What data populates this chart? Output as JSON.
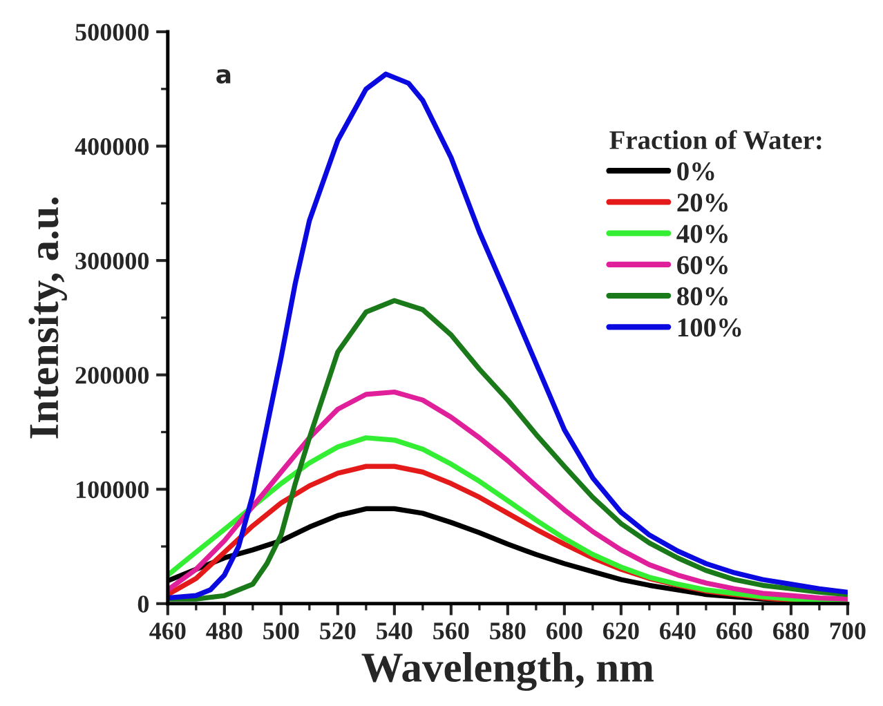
{
  "chart_data": {
    "type": "line",
    "xlabel": "Wavelength, nm",
    "ylabel": "Intensity, a.u.",
    "legend_title": "Fraction of Water:",
    "legend": "top right",
    "grid": false,
    "line_style": "solid",
    "marker": "none",
    "annotations": [
      "a"
    ],
    "xlim": [
      460,
      700
    ],
    "xticks": [
      460,
      480,
      500,
      520,
      540,
      560,
      580,
      600,
      620,
      640,
      660,
      680,
      700
    ],
    "ylim": [
      0,
      500000
    ],
    "yticks": [
      0,
      100000,
      200000,
      300000,
      400000,
      500000
    ],
    "x": [
      460,
      470,
      480,
      490,
      500,
      510,
      520,
      530,
      540,
      550,
      560,
      570,
      580,
      590,
      600,
      610,
      620,
      630,
      640,
      650,
      660,
      670,
      680,
      690,
      700
    ],
    "series": [
      {
        "name": "0%",
        "color": "#000000",
        "values": [
          20000,
          30000,
          40000,
          47000,
          55000,
          67000,
          77000,
          83000,
          83000,
          79000,
          71000,
          62000,
          52000,
          43000,
          35000,
          28000,
          21000,
          16000,
          12000,
          8000,
          6000,
          4000,
          3000,
          2000,
          1000
        ]
      },
      {
        "name": "20%",
        "color": "#e41a1a",
        "values": [
          8000,
          22000,
          45000,
          68000,
          88000,
          103000,
          114000,
          120000,
          120000,
          115000,
          105000,
          93000,
          79000,
          65000,
          52000,
          40000,
          30000,
          22000,
          16000,
          11000,
          8000,
          5000,
          3000,
          2000,
          1000
        ]
      },
      {
        "name": "40%",
        "color": "#33ee33",
        "values": [
          25000,
          45000,
          65000,
          85000,
          105000,
          123000,
          137000,
          145000,
          143000,
          135000,
          122000,
          107000,
          90000,
          73000,
          57000,
          43000,
          32000,
          23000,
          17000,
          12000,
          9000,
          6000,
          4000,
          3000,
          2000
        ]
      },
      {
        "name": "60%",
        "color": "#e0209a",
        "values": [
          12000,
          30000,
          55000,
          85000,
          115000,
          145000,
          170000,
          183000,
          185000,
          178000,
          163000,
          145000,
          125000,
          103000,
          82000,
          63000,
          47000,
          34000,
          25000,
          18000,
          13000,
          9000,
          7000,
          5000,
          4000
        ]
      },
      {
        "name": "80%",
        "color": "#1a7a1a",
        "x": [
          460,
          470,
          480,
          490,
          495,
          500,
          505,
          510,
          520,
          530,
          540,
          550,
          560,
          570,
          580,
          590,
          600,
          610,
          620,
          630,
          640,
          650,
          660,
          670,
          680,
          690,
          700
        ],
        "values": [
          4000,
          4000,
          7000,
          17000,
          35000,
          60000,
          105000,
          145000,
          220000,
          255000,
          265000,
          257000,
          235000,
          205000,
          178000,
          148000,
          120000,
          93000,
          70000,
          53000,
          40000,
          29000,
          21000,
          16000,
          13000,
          10000,
          8000
        ]
      },
      {
        "name": "100%",
        "color": "#0a0ae0",
        "x": [
          460,
          470,
          475,
          480,
          485,
          490,
          495,
          500,
          505,
          510,
          520,
          530,
          537,
          545,
          550,
          560,
          570,
          580,
          590,
          600,
          610,
          620,
          630,
          640,
          650,
          660,
          670,
          680,
          690,
          700
        ],
        "values": [
          5000,
          7000,
          12000,
          25000,
          50000,
          95000,
          155000,
          215000,
          280000,
          335000,
          405000,
          450000,
          463000,
          455000,
          440000,
          390000,
          325000,
          268000,
          210000,
          152000,
          110000,
          80000,
          60000,
          46000,
          35000,
          27000,
          21000,
          17000,
          13000,
          10000
        ]
      }
    ]
  }
}
